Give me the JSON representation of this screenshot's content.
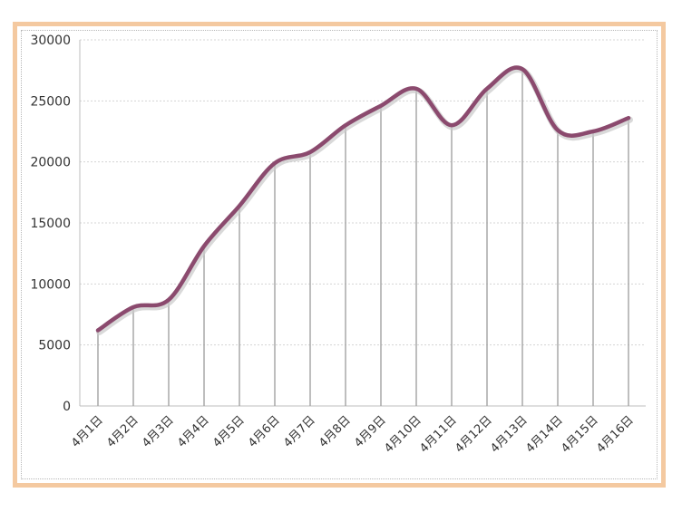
{
  "chart_data": {
    "type": "area",
    "title": "",
    "xlabel": "",
    "ylabel": "",
    "categories": [
      "4月1日",
      "4月2日",
      "4月3日",
      "4月4日",
      "4月5日",
      "4月6日",
      "4月7日",
      "4月8日",
      "4月9日",
      "4月10日",
      "4月11日",
      "4月12日",
      "4月13日",
      "4月14日",
      "4月15日",
      "4月16日"
    ],
    "values": [
      6200,
      8100,
      8700,
      13100,
      16400,
      19900,
      20800,
      23000,
      24600,
      26000,
      23000,
      26000,
      27600,
      22600,
      22500,
      23600
    ],
    "y_ticks": [
      "30000",
      "25000",
      "20000",
      "15000",
      "10000",
      "5000",
      "0"
    ],
    "ylim": [
      0,
      30000
    ],
    "grid": true,
    "legend": "none",
    "colors": {
      "line": "#8b4a6e",
      "drop_lines": "#a8a8a8",
      "grid": "#d4d4d4",
      "frame_border": "#f4c9a0"
    }
  }
}
